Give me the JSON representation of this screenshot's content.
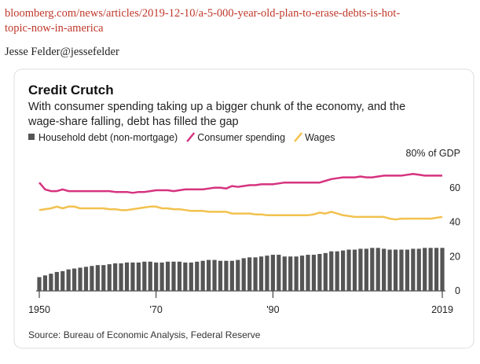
{
  "header": {
    "link_lines": [
      "bloomberg.com/news/articles/2019-12-10/a-5-000-year-old-plan-to-erase-debts-is-hot-",
      "topic-now-in-america"
    ],
    "author": "Jesse Felder@jessefelder"
  },
  "chart_data": {
    "type": "bar_line",
    "title": "Credit Crutch",
    "subtitle_lines": [
      "With consumer spending taking up a bigger chunk of the economy, and the",
      "wage-share falling, debt has filled the gap"
    ],
    "source": "Source: Bureau of Economic Analysis, Federal Reserve",
    "x": [
      1950,
      1951,
      1952,
      1953,
      1954,
      1955,
      1956,
      1957,
      1958,
      1959,
      1960,
      1961,
      1962,
      1963,
      1964,
      1965,
      1966,
      1967,
      1968,
      1969,
      1970,
      1971,
      1972,
      1973,
      1974,
      1975,
      1976,
      1977,
      1978,
      1979,
      1980,
      1981,
      1982,
      1983,
      1984,
      1985,
      1986,
      1987,
      1988,
      1989,
      1990,
      1991,
      1992,
      1993,
      1994,
      1995,
      1996,
      1997,
      1998,
      1999,
      2000,
      2001,
      2002,
      2003,
      2004,
      2005,
      2006,
      2007,
      2008,
      2009,
      2010,
      2011,
      2012,
      2013,
      2014,
      2015,
      2016,
      2017,
      2018,
      2019
    ],
    "series": [
      {
        "name": "Household debt (non-mortgage)",
        "kind": "bar",
        "color": "#555555",
        "values": [
          8,
          9,
          10,
          11,
          11.5,
          12.5,
          13,
          13.5,
          14,
          14.5,
          15,
          15,
          15.5,
          16,
          16,
          16.5,
          16.5,
          16.5,
          17,
          17,
          16.5,
          16.5,
          17,
          17,
          17,
          16.5,
          16.5,
          17,
          17.5,
          18,
          18,
          17.5,
          17.5,
          17.5,
          18,
          19,
          19.5,
          19.5,
          20,
          20.5,
          21,
          21,
          20,
          20,
          20,
          20.5,
          21,
          21,
          21.5,
          22,
          23,
          23,
          23.5,
          24,
          24,
          24.5,
          24.5,
          25,
          25,
          24.5,
          24,
          24,
          24,
          24,
          24.5,
          24.5,
          25,
          25,
          25,
          25
        ]
      },
      {
        "name": "Consumer spending",
        "kind": "line",
        "color": "#d6337f",
        "values": [
          63,
          59,
          58,
          58,
          59,
          58,
          58,
          58,
          58,
          58,
          58,
          58,
          58,
          57.5,
          57.5,
          57.5,
          57,
          57.5,
          57.5,
          58,
          58.5,
          58.5,
          58.5,
          58,
          58.5,
          59,
          59,
          59,
          59,
          59.5,
          60,
          60,
          59.5,
          61,
          60.5,
          61,
          61.5,
          61.5,
          62,
          62,
          62,
          62.5,
          63,
          63,
          63,
          63,
          63,
          63,
          63,
          64,
          65,
          65.5,
          66,
          66,
          66,
          66.5,
          66,
          66,
          66.5,
          67,
          67,
          67,
          67,
          67.5,
          68,
          67.5,
          67,
          67,
          67,
          67
        ]
      },
      {
        "name": "Wages",
        "kind": "line",
        "color": "#f2c14e",
        "values": [
          47,
          47.5,
          48,
          49,
          48,
          49,
          49,
          48,
          48,
          48,
          48,
          48,
          47.5,
          47.5,
          47,
          47,
          47.5,
          48,
          48.5,
          49,
          49,
          48,
          48,
          47.5,
          47.5,
          47,
          46.5,
          46.5,
          46.5,
          46,
          46,
          46,
          46,
          45,
          45,
          45,
          45,
          44.5,
          44.5,
          44,
          44,
          44,
          44,
          44,
          44,
          44,
          44,
          44.5,
          45.5,
          45,
          46,
          45,
          44,
          43.5,
          43,
          43,
          43,
          43,
          43,
          43,
          42,
          41.5,
          42,
          42,
          42,
          42,
          42,
          42,
          42.5,
          43
        ]
      }
    ],
    "xlim": [
      1950,
      2019
    ],
    "xticks": [
      1950,
      {
        "value": 1970,
        "label": "'70"
      },
      {
        "value": 1990,
        "label": "'90"
      },
      2019
    ],
    "ylim": [
      0,
      80
    ],
    "yticks": [
      0,
      20,
      40,
      {
        "value": 60,
        "label": "60"
      },
      {
        "value": 80,
        "label": "80% of GDP"
      }
    ],
    "grid": false
  }
}
